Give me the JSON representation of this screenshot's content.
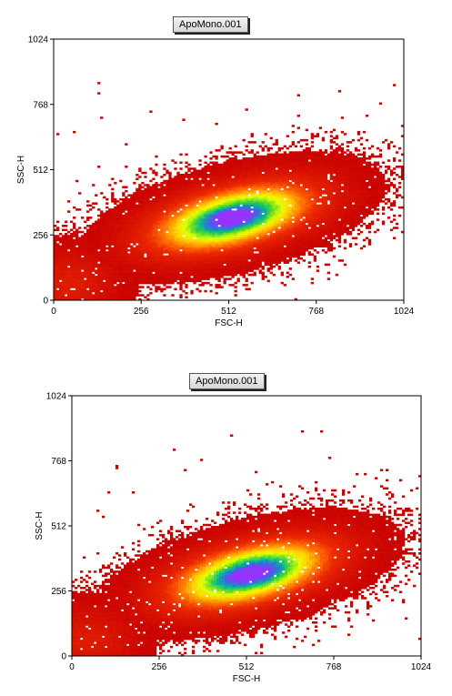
{
  "chart_data": [
    {
      "type": "heatmap",
      "title": "ApoMono.001",
      "xlabel": "FSC-H",
      "ylabel": "SSC-H",
      "xlim": [
        0,
        1024
      ],
      "ylim": [
        0,
        1024
      ],
      "xticks": [
        "0",
        "256",
        "512",
        "768",
        "1024"
      ],
      "yticks": [
        "0",
        "256",
        "512",
        "768",
        "1024"
      ],
      "grid": false,
      "legend": "none",
      "density_peak": {
        "x": 520,
        "y": 320
      },
      "colors": {
        "low": "#c00000",
        "mid": "#ffff00",
        "high": "#9933ff"
      }
    },
    {
      "type": "heatmap",
      "title": "ApoMono.001",
      "xlabel": "FSC-H",
      "ylabel": "SSC-H",
      "xlim": [
        0,
        1024
      ],
      "ylim": [
        0,
        1024
      ],
      "xticks": [
        "0",
        "256",
        "512",
        "768",
        "1024"
      ],
      "yticks": [
        "0",
        "256",
        "512",
        "768",
        "1024"
      ],
      "grid": false,
      "legend": "none",
      "density_peak": {
        "x": 520,
        "y": 320
      },
      "colors": {
        "low": "#c00000",
        "mid": "#ffff00",
        "high": "#9933ff"
      }
    }
  ]
}
